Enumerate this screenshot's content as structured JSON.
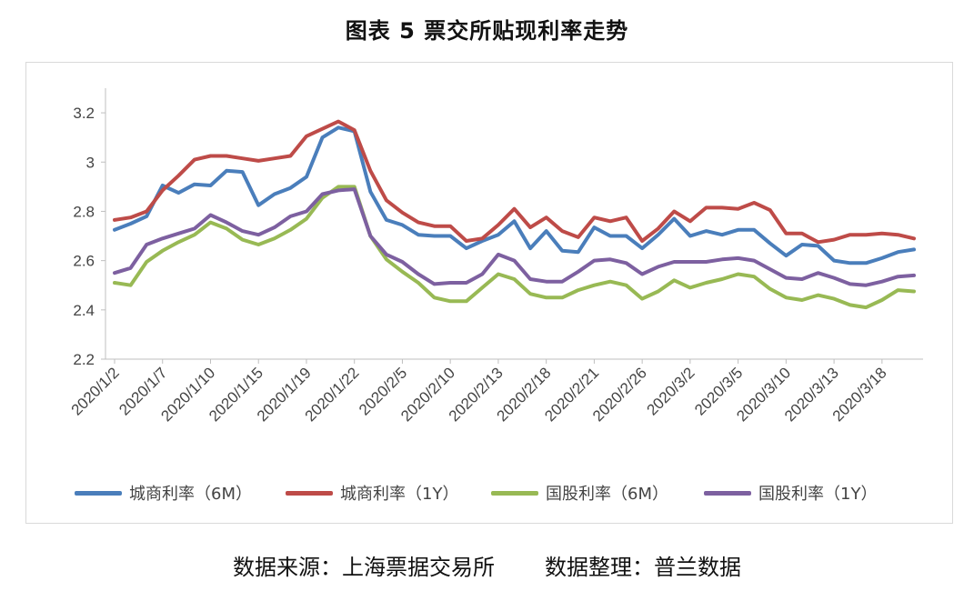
{
  "title": "图表 5  票交所贴现利率走势",
  "source_left": "数据来源：上海票据交易所",
  "source_right": "数据整理：普兰数据",
  "colors": {
    "s1": "#4a7ebb",
    "s2": "#be4b48",
    "s3": "#98b954",
    "s4": "#7d60a0",
    "axis": "#bfbfbf",
    "frame": "#d9d9d9"
  },
  "chart_data": {
    "type": "line",
    "ylim": [
      2.2,
      3.3
    ],
    "yticks": [
      "2.2",
      "2.4",
      "2.6",
      "2.8",
      "3",
      "3.2"
    ],
    "x_tick_labels": [
      "2020/1/2",
      "2020/1/7",
      "2020/1/10",
      "2020/1/15",
      "2020/1/19",
      "2020/1/22",
      "2020/2/5",
      "2020/2/10",
      "2020/2/13",
      "2020/2/18",
      "2020/2/21",
      "2020/2/26",
      "2020/3/2",
      "2020/3/5",
      "2020/3/10",
      "2020/3/13",
      "2020/3/18"
    ],
    "series": [
      {
        "name": "城商利率（6M）",
        "values": [
          2.725,
          2.75,
          2.78,
          2.905,
          2.875,
          2.91,
          2.905,
          2.965,
          2.96,
          2.825,
          2.87,
          2.895,
          2.94,
          3.1,
          3.14,
          3.125,
          2.88,
          2.765,
          2.745,
          2.705,
          2.7,
          2.7,
          2.65,
          2.68,
          2.705,
          2.76,
          2.65,
          2.72,
          2.64,
          2.635,
          2.735,
          2.7,
          2.7,
          2.65,
          2.705,
          2.77,
          2.7,
          2.72,
          2.705,
          2.725,
          2.725,
          2.67,
          2.62,
          2.665,
          2.66,
          2.6,
          2.59,
          2.59,
          2.61,
          2.635,
          2.645
        ]
      },
      {
        "name": "城商利率（1Y）",
        "values": [
          2.765,
          2.775,
          2.8,
          2.885,
          2.945,
          3.01,
          3.025,
          3.025,
          3.015,
          3.005,
          3.015,
          3.025,
          3.105,
          3.135,
          3.165,
          3.13,
          2.965,
          2.845,
          2.795,
          2.755,
          2.74,
          2.74,
          2.68,
          2.69,
          2.745,
          2.81,
          2.735,
          2.775,
          2.72,
          2.695,
          2.775,
          2.76,
          2.775,
          2.68,
          2.73,
          2.8,
          2.76,
          2.815,
          2.815,
          2.81,
          2.835,
          2.805,
          2.71,
          2.71,
          2.675,
          2.685,
          2.705,
          2.705,
          2.71,
          2.705,
          2.69
        ]
      },
      {
        "name": "国股利率（6M）",
        "values": [
          2.51,
          2.5,
          2.595,
          2.64,
          2.675,
          2.705,
          2.755,
          2.73,
          2.685,
          2.665,
          2.69,
          2.725,
          2.77,
          2.855,
          2.9,
          2.9,
          2.7,
          2.605,
          2.555,
          2.51,
          2.45,
          2.435,
          2.435,
          2.49,
          2.545,
          2.525,
          2.465,
          2.45,
          2.45,
          2.48,
          2.5,
          2.515,
          2.5,
          2.445,
          2.475,
          2.52,
          2.49,
          2.51,
          2.525,
          2.545,
          2.535,
          2.485,
          2.45,
          2.44,
          2.46,
          2.445,
          2.42,
          2.41,
          2.44,
          2.48,
          2.475
        ]
      },
      {
        "name": "国股利率（1Y）",
        "values": [
          2.55,
          2.57,
          2.665,
          2.69,
          2.71,
          2.73,
          2.785,
          2.755,
          2.72,
          2.705,
          2.735,
          2.78,
          2.8,
          2.87,
          2.885,
          2.89,
          2.7,
          2.625,
          2.595,
          2.545,
          2.505,
          2.51,
          2.51,
          2.545,
          2.625,
          2.6,
          2.525,
          2.515,
          2.515,
          2.555,
          2.6,
          2.605,
          2.59,
          2.545,
          2.575,
          2.595,
          2.595,
          2.595,
          2.605,
          2.61,
          2.6,
          2.565,
          2.53,
          2.525,
          2.55,
          2.53,
          2.505,
          2.5,
          2.515,
          2.535,
          2.54
        ]
      }
    ]
  }
}
